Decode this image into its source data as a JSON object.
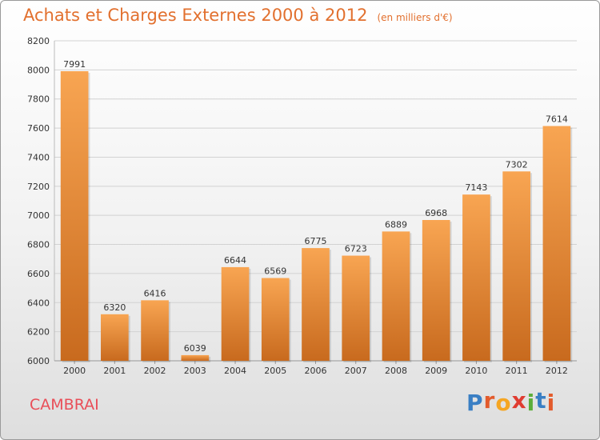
{
  "header": {
    "title": "Achats et Charges Externes 2000 à 2012",
    "subtitle": "(en milliers d'€)"
  },
  "footer": {
    "city": "CAMBRAI",
    "logo": "Proxiti"
  },
  "colors": {
    "bar_top": "#f8a552",
    "bar_bottom": "#c86a1e",
    "title": "#e2702e",
    "city": "#e94e58",
    "logo_letters": [
      "#3a7fc4",
      "#e35b2c",
      "#f5a623",
      "#e03c31",
      "#5cae3a",
      "#3a7fc4",
      "#e35b2c"
    ]
  },
  "chart_data": {
    "type": "bar",
    "title": "Achats et Charges Externes 2000 à 2012",
    "subtitle": "(en milliers d'€)",
    "categories": [
      "2000",
      "2001",
      "2002",
      "2003",
      "2004",
      "2005",
      "2006",
      "2007",
      "2008",
      "2009",
      "2010",
      "2011",
      "2012"
    ],
    "values": [
      7991,
      6320,
      6416,
      6039,
      6644,
      6569,
      6775,
      6723,
      6889,
      6968,
      7143,
      7302,
      7614
    ],
    "yticks": [
      6000,
      6200,
      6400,
      6600,
      6800,
      7000,
      7200,
      7400,
      7600,
      7800,
      8000,
      8200
    ],
    "ylim": [
      6000,
      8200
    ],
    "grid": true,
    "legend": "none"
  }
}
